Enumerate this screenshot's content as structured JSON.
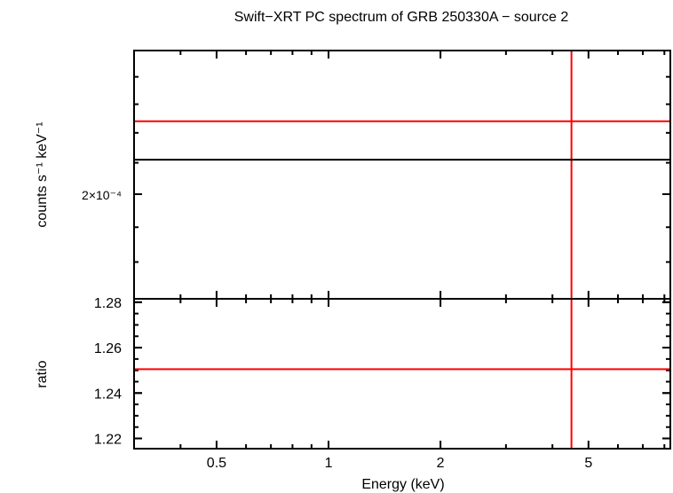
{
  "chart_data": [
    {
      "type": "scatter",
      "title": "Swift−XRT PC spectrum of GRB 250330A − source 2",
      "xlabel": "Energy (keV)",
      "ylabel": "counts s⁻¹ keV⁻¹",
      "xscale": "log",
      "yscale": "log",
      "xlim": [
        0.3,
        8.3
      ],
      "ylim": [
        0.00017,
        0.00025
      ],
      "yticks": [
        {
          "value": 0.0002,
          "label": "2×10⁻⁴"
        }
      ],
      "series": [
        {
          "color": "#ff0000",
          "x": [
            0.3,
            8.3
          ],
          "y": [
            0.000224,
            0.000224
          ],
          "x_point": 4.5,
          "yerr": [
            0.00017,
            0.00025
          ]
        },
        {
          "color": "#000000",
          "x": [
            0.3,
            8.3
          ],
          "y": [
            0.000211,
            0.000211
          ]
        }
      ]
    },
    {
      "type": "scatter",
      "xlabel": "Energy (keV)",
      "ylabel": "ratio",
      "xscale": "log",
      "xlim": [
        0.3,
        8.3
      ],
      "ylim": [
        1.2155,
        1.2815
      ],
      "xticks": [
        {
          "value": 0.5,
          "label": "0.5"
        },
        {
          "value": 1,
          "label": "1"
        },
        {
          "value": 2,
          "label": "2"
        },
        {
          "value": 5,
          "label": "5"
        }
      ],
      "yticks": [
        {
          "value": 1.22,
          "label": "1.22"
        },
        {
          "value": 1.24,
          "label": "1.24"
        },
        {
          "value": 1.26,
          "label": "1.26"
        },
        {
          "value": 1.28,
          "label": "1.28"
        }
      ],
      "series": [
        {
          "color": "#ff0000",
          "x": [
            0.3,
            8.3
          ],
          "y": [
            1.2505,
            1.2505
          ],
          "x_point": 4.5,
          "yerr": [
            1.2155,
            1.2815
          ]
        }
      ]
    }
  ]
}
